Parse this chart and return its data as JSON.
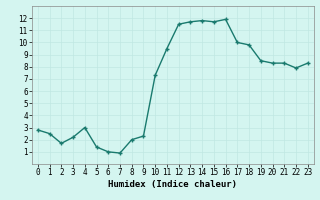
{
  "x": [
    0,
    1,
    2,
    3,
    4,
    5,
    6,
    7,
    8,
    9,
    10,
    11,
    12,
    13,
    14,
    15,
    16,
    17,
    18,
    19,
    20,
    21,
    22,
    23
  ],
  "y": [
    2.8,
    2.5,
    1.7,
    2.2,
    3.0,
    1.4,
    1.0,
    0.9,
    2.0,
    2.3,
    7.3,
    9.5,
    11.5,
    11.7,
    11.8,
    11.7,
    11.9,
    10.0,
    9.8,
    8.5,
    8.3,
    8.3,
    7.9,
    8.3
  ],
  "line_color": "#1a7a6e",
  "marker_color": "#1a7a6e",
  "bg_color": "#d4f5f0",
  "grid_color": "#c0e8e2",
  "xlabel": "Humidex (Indice chaleur)",
  "xlim": [
    -0.5,
    23.5
  ],
  "ylim": [
    0,
    13
  ],
  "yticks": [
    1,
    2,
    3,
    4,
    5,
    6,
    7,
    8,
    9,
    10,
    11,
    12
  ],
  "xticks": [
    0,
    1,
    2,
    3,
    4,
    5,
    6,
    7,
    8,
    9,
    10,
    11,
    12,
    13,
    14,
    15,
    16,
    17,
    18,
    19,
    20,
    21,
    22,
    23
  ],
  "xlabel_fontsize": 6.5,
  "tick_fontsize": 5.5,
  "linewidth": 1.0,
  "markersize": 3.0
}
